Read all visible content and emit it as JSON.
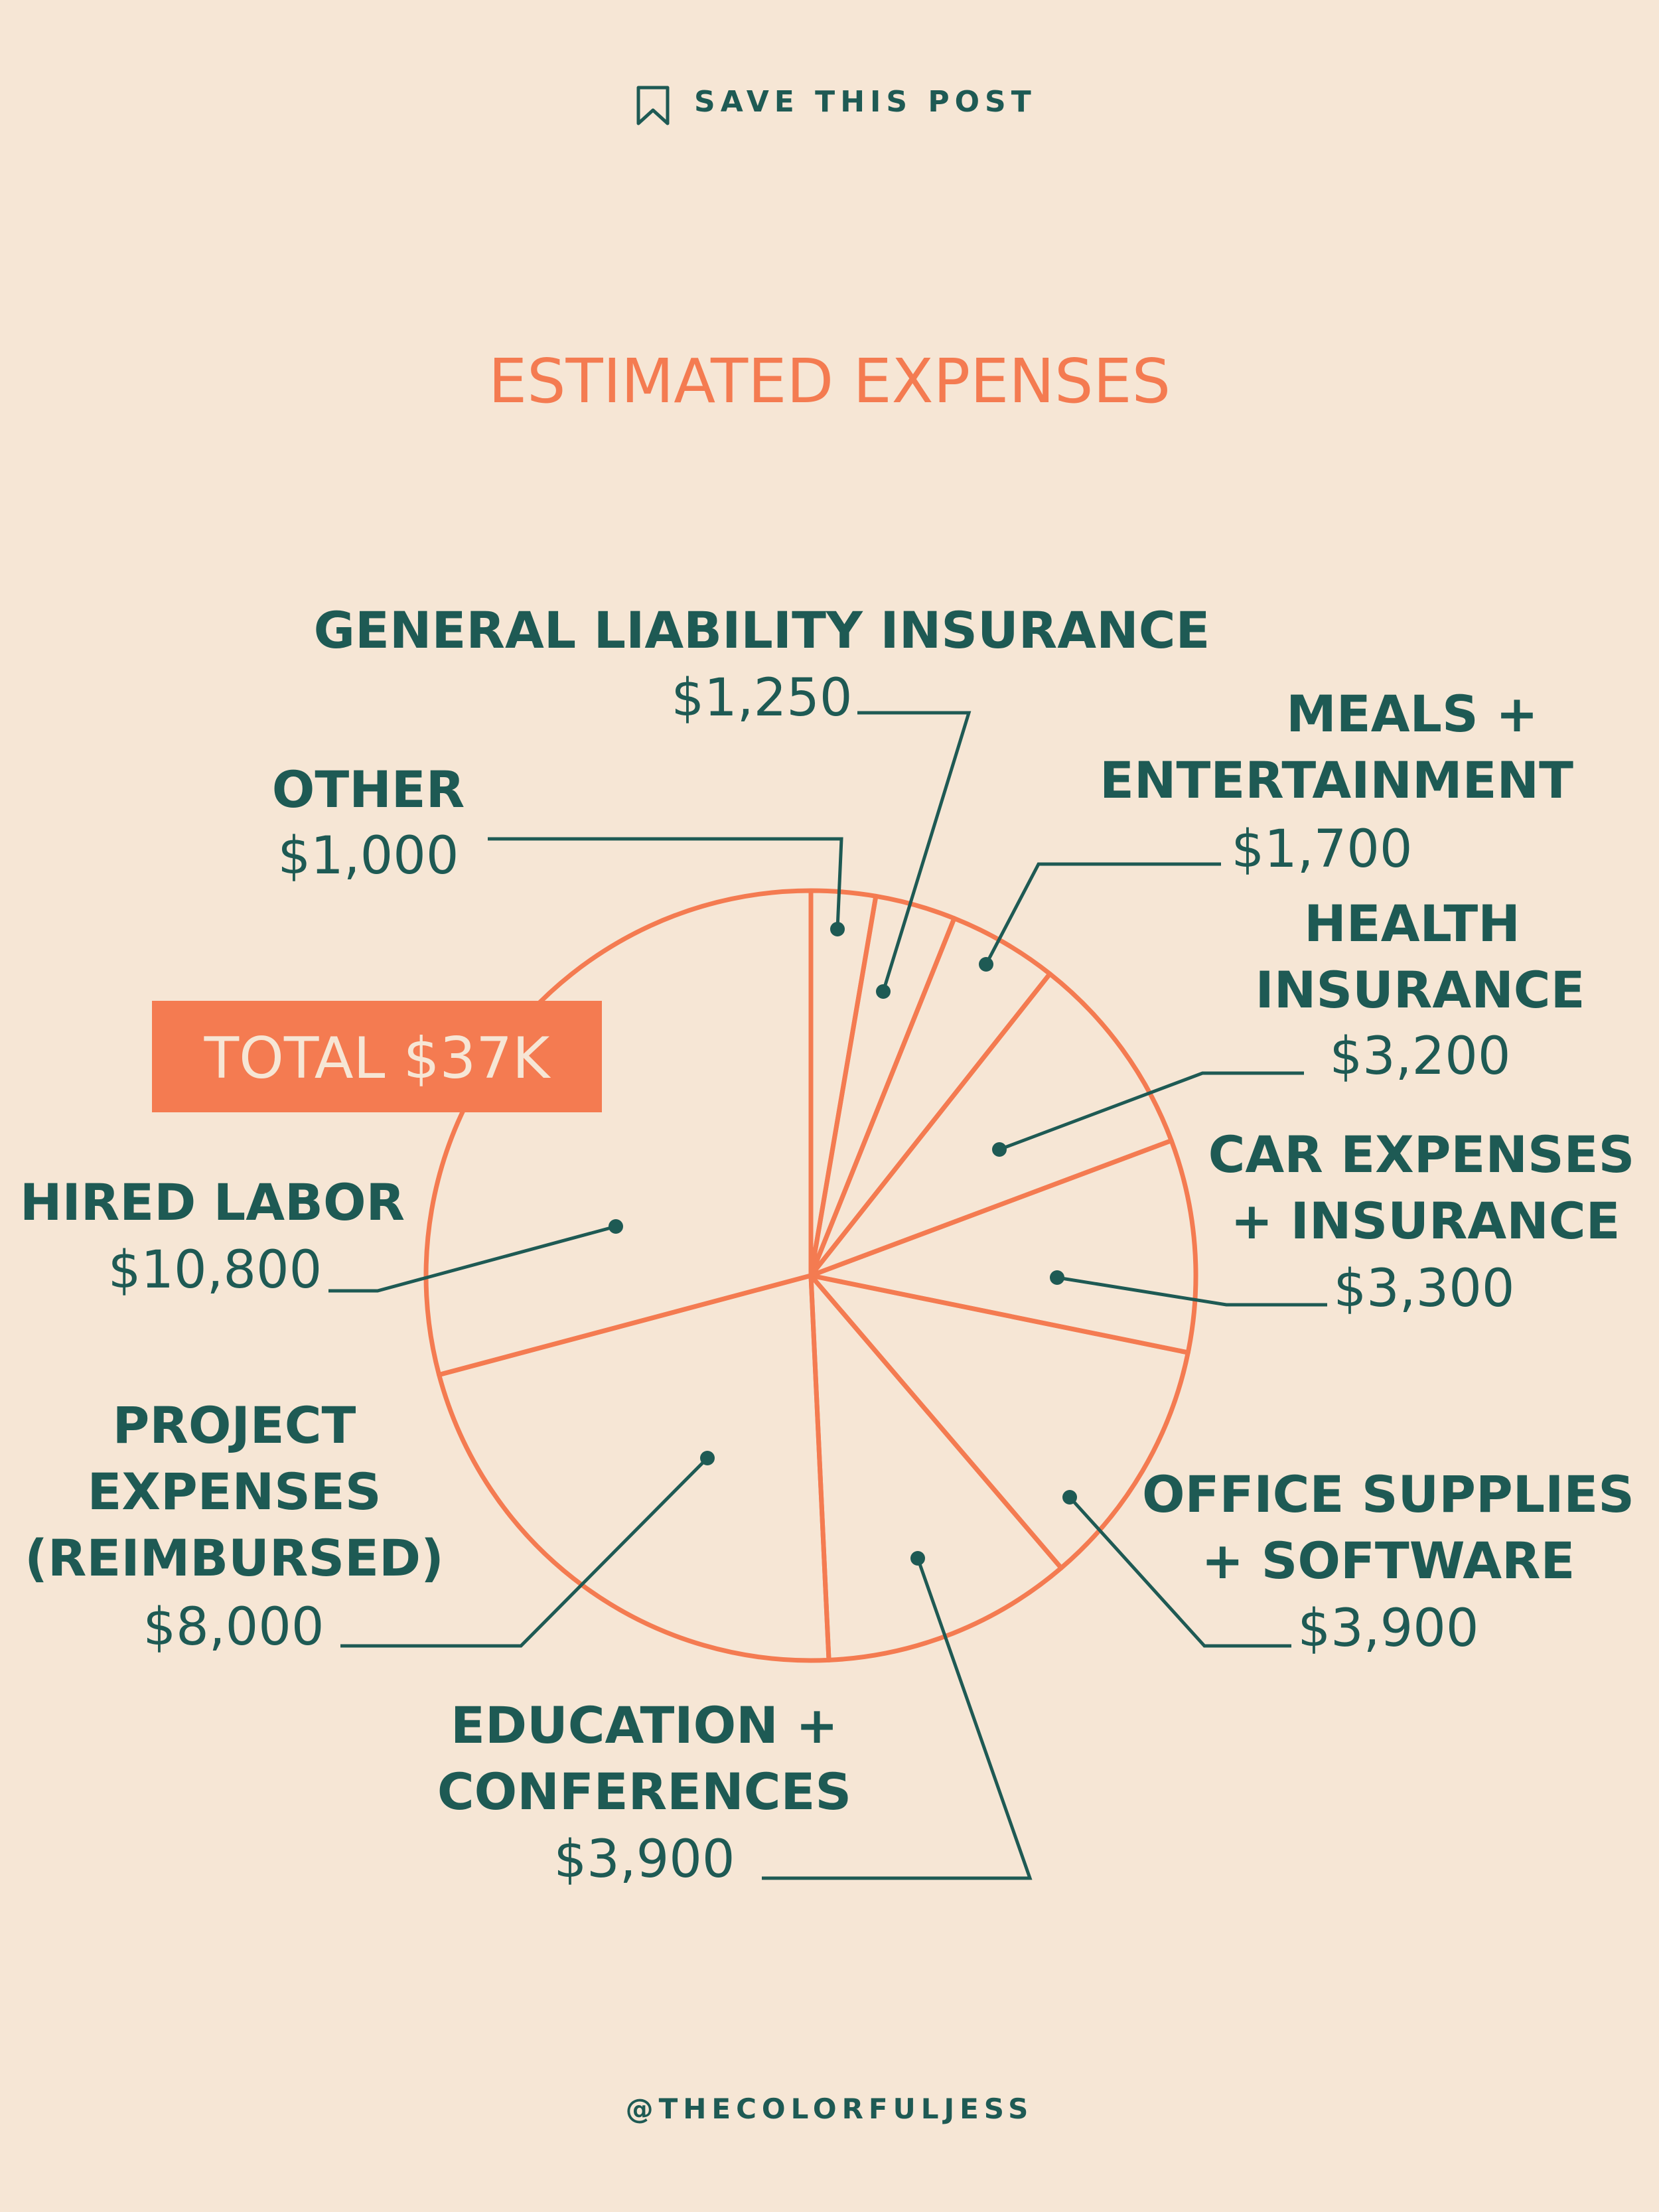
{
  "header": {
    "save_label": "SAVE THIS POST"
  },
  "footer": {
    "handle": "@THECOLORFULJESS"
  },
  "total": {
    "label": "TOTAL $37K"
  },
  "colors": {
    "background": "#f6e6d5",
    "accent": "#f47b51",
    "text": "#1e5a54",
    "badge_text": "#f6e6d5"
  },
  "icons": {
    "save": "bookmark-icon"
  },
  "chart_data": {
    "type": "pie",
    "title": "ESTIMATED EXPENSES",
    "slices": [
      {
        "label": "OTHER",
        "value": 1000,
        "value_label": "$1,000"
      },
      {
        "label": "GENERAL LIABILITY INSURANCE",
        "value": 1250,
        "value_label": "$1,250"
      },
      {
        "label": "MEALS + ENTERTAINMENT",
        "value": 1700,
        "value_label": "$1,700"
      },
      {
        "label": "HEALTH INSURANCE",
        "value": 3200,
        "value_label": "$3,200"
      },
      {
        "label": "CAR EXPENSES + INSURANCE",
        "value": 3300,
        "value_label": "$3,300"
      },
      {
        "label": "OFFICE SUPPLIES + SOFTWARE",
        "value": 3900,
        "value_label": "$3,900"
      },
      {
        "label": "EDUCATION + CONFERENCES",
        "value": 3900,
        "value_label": "$3,900"
      },
      {
        "label": "PROJECT EXPENSES (REIMBURSED)",
        "value": 8000,
        "value_label": "$8,000"
      },
      {
        "label": "HIRED LABOR",
        "value": 10800,
        "value_label": "$10,800"
      }
    ]
  }
}
